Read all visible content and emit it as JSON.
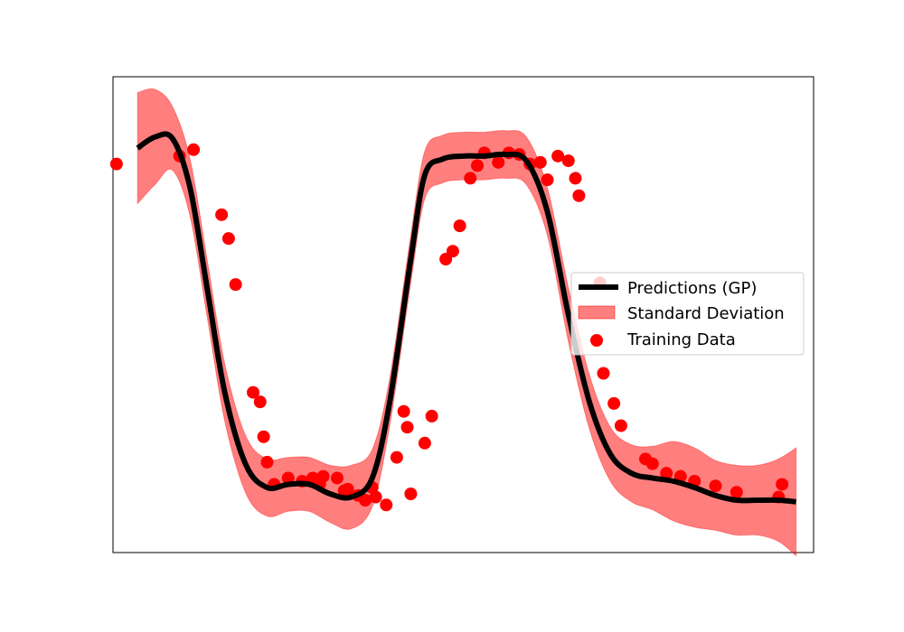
{
  "chart_data": {
    "type": "scatter",
    "title": "",
    "xlabel": "",
    "ylabel": "",
    "axes_visible": false,
    "grid": false,
    "legend_position": "center-right",
    "xlim": [
      0,
      10
    ],
    "ylim": [
      -1.55,
      1.45
    ],
    "colors": {
      "prediction": "#000000",
      "band": "#ff0000",
      "points": "#ff0000"
    },
    "legend": [
      {
        "key": "prediction",
        "label": "Predictions (GP)"
      },
      {
        "key": "band",
        "label": "Standard Deviation"
      },
      {
        "key": "points",
        "label": "Training Data"
      }
    ],
    "prediction": {
      "x": [
        0.35,
        0.6,
        0.85,
        1.1,
        1.35,
        1.6,
        1.9,
        2.2,
        2.5,
        2.8,
        3.1,
        3.4,
        3.7,
        3.95,
        4.25,
        4.45,
        4.7,
        5.0,
        5.3,
        5.6,
        5.9,
        6.2,
        6.5,
        6.8,
        7.1,
        7.4,
        7.7,
        8.0,
        8.3,
        8.6,
        8.9,
        9.2,
        9.5,
        9.75
      ],
      "y": [
        1.0,
        1.07,
        1.06,
        0.75,
        0.1,
        -0.55,
        -1.0,
        -1.14,
        -1.12,
        -1.12,
        -1.18,
        -1.2,
        -1.08,
        -0.6,
        0.3,
        0.83,
        0.93,
        0.95,
        0.95,
        0.96,
        0.92,
        0.6,
        -0.05,
        -0.6,
        -0.93,
        -1.05,
        -1.08,
        -1.1,
        -1.14,
        -1.19,
        -1.22,
        -1.22,
        -1.22,
        -1.23
      ],
      "std": [
        0.35,
        0.3,
        0.2,
        0.18,
        0.18,
        0.18,
        0.18,
        0.18,
        0.17,
        0.17,
        0.18,
        0.2,
        0.18,
        0.15,
        0.15,
        0.15,
        0.15,
        0.15,
        0.15,
        0.15,
        0.15,
        0.15,
        0.17,
        0.17,
        0.17,
        0.18,
        0.2,
        0.25,
        0.25,
        0.22,
        0.22,
        0.22,
        0.26,
        0.34
      ]
    },
    "training_data": {
      "x": [
        0.05,
        0.95,
        1.15,
        1.55,
        1.65,
        1.75,
        2.0,
        2.1,
        2.15,
        2.2,
        2.3,
        2.5,
        2.7,
        2.85,
        2.95,
        3.0,
        3.2,
        3.3,
        3.35,
        3.5,
        3.6,
        3.7,
        3.75,
        3.9,
        4.05,
        4.15,
        4.2,
        4.25,
        4.45,
        4.55,
        4.75,
        4.85,
        4.95,
        5.1,
        5.2,
        5.3,
        5.5,
        5.65,
        5.8,
        5.95,
        6.1,
        6.2,
        6.35,
        6.5,
        6.6,
        6.65,
        6.95,
        7.0,
        7.15,
        7.25,
        7.6,
        7.7,
        7.9,
        8.1,
        8.3,
        8.6,
        8.9,
        9.5,
        9.55
      ],
      "y": [
        0.9,
        0.95,
        0.99,
        0.58,
        0.43,
        0.14,
        -0.54,
        -0.6,
        -0.82,
        -0.98,
        -1.12,
        -1.08,
        -1.1,
        -1.08,
        -1.12,
        -1.07,
        -1.08,
        -1.16,
        -1.15,
        -1.19,
        -1.22,
        -1.14,
        -1.2,
        -1.25,
        -0.95,
        -0.66,
        -0.76,
        -1.18,
        -0.86,
        -0.69,
        0.3,
        0.35,
        0.51,
        0.81,
        0.89,
        0.97,
        0.91,
        0.97,
        0.96,
        0.9,
        0.91,
        0.8,
        0.95,
        0.92,
        0.81,
        0.7,
        0.15,
        -0.42,
        -0.61,
        -0.75,
        -0.96,
        -0.99,
        -1.05,
        -1.07,
        -1.1,
        -1.13,
        -1.17,
        -1.2,
        -1.12
      ]
    }
  }
}
